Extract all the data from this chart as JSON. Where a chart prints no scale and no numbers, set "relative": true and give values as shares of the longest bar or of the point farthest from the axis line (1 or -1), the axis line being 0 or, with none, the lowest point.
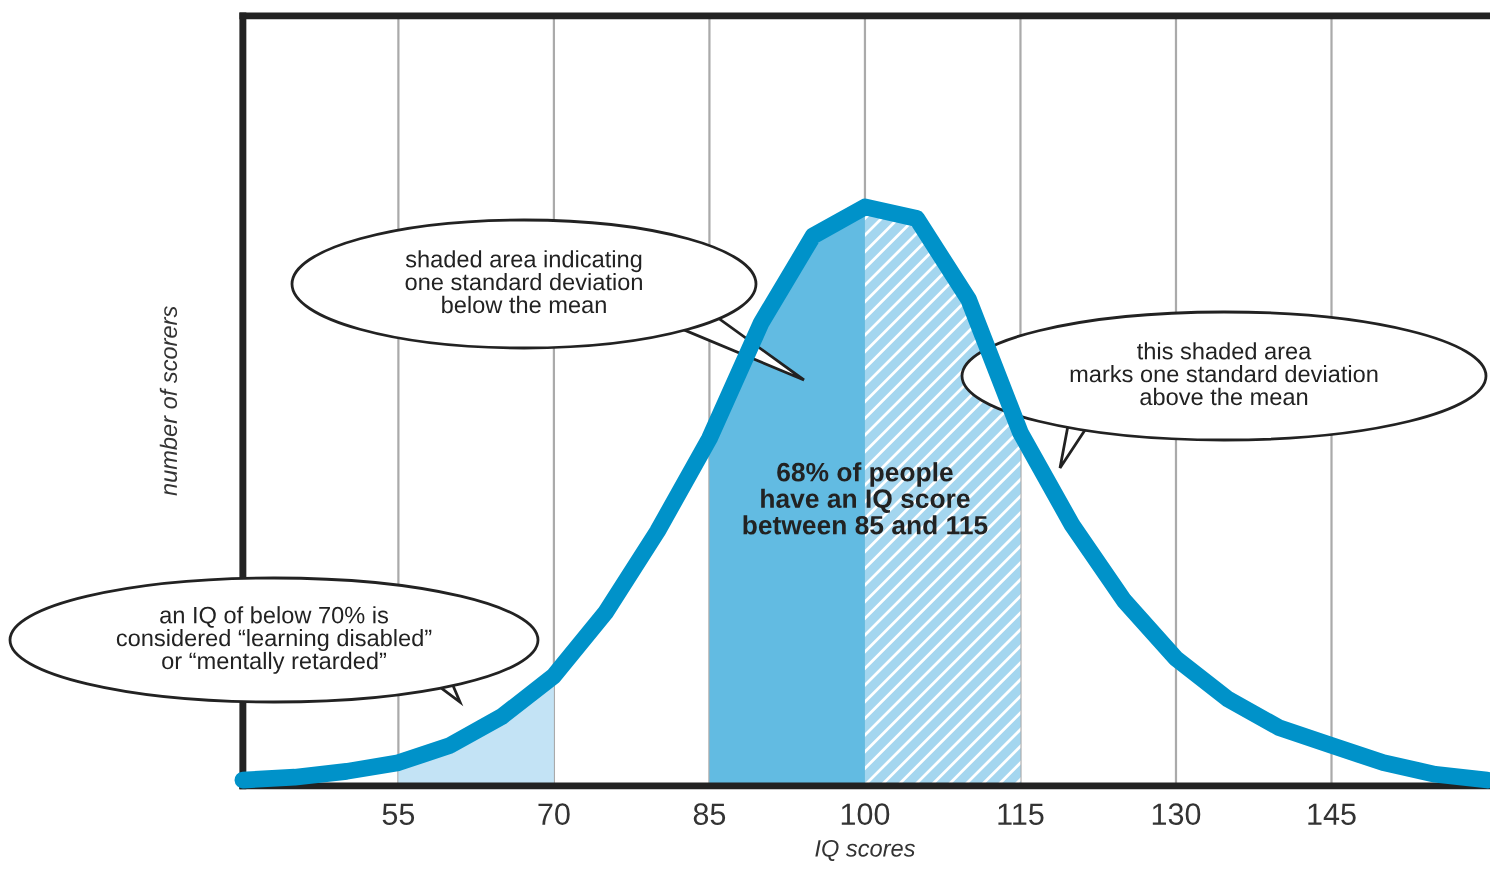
{
  "chart_data": {
    "type": "line",
    "xlabel": "IQ scores",
    "ylabel": "number of scorers",
    "x": [
      40,
      45,
      50,
      55,
      60,
      65,
      70,
      75,
      80,
      85,
      90,
      95,
      100,
      105,
      110,
      115,
      120,
      125,
      130,
      135,
      140,
      145,
      150,
      155,
      160
    ],
    "series": [
      {
        "color": "#0092c9",
        "values": [
          0.01,
          0.015,
          0.025,
          0.04,
          0.07,
          0.12,
          0.19,
          0.3,
          0.44,
          0.6,
          0.8,
          0.95,
          1,
          0.98,
          0.84,
          0.61,
          0.45,
          0.32,
          0.22,
          0.15,
          0.1,
          0.07,
          0.04,
          0.02,
          0.01
        ]
      },
      {
        "type": "area",
        "color": "#c3e3f5",
        "x": [
          55,
          60,
          65,
          70
        ],
        "values": [
          0.04,
          0.07,
          0.12,
          0.19
        ]
      },
      {
        "type": "area",
        "color": "#62bbe2",
        "x": [
          85,
          90,
          95,
          100
        ],
        "values": [
          0.6,
          0.8,
          0.95,
          1
        ]
      },
      {
        "type": "area",
        "color": "#a4d6ef",
        "x": [
          100,
          105,
          110,
          115
        ],
        "values": [
          1,
          0.98,
          0.84,
          0.61
        ]
      }
    ],
    "relative": true,
    "xlim": [
      40,
      160
    ],
    "xticks": [
      55,
      70,
      85,
      100,
      115,
      130,
      145
    ],
    "grid": "x",
    "line_style": "solid",
    "marker": "none",
    "annotations": [
      "shaded area indicating\none standard deviation\nbelow the mean",
      "this shaded area\nmarks one standard deviation\nabove the mean",
      "an IQ of below 70% is\nconsidered “learning disabled”\nor “mentally retarded”",
      "68% of people\nhave an IQ score\nbetween 85 and 115"
    ]
  }
}
